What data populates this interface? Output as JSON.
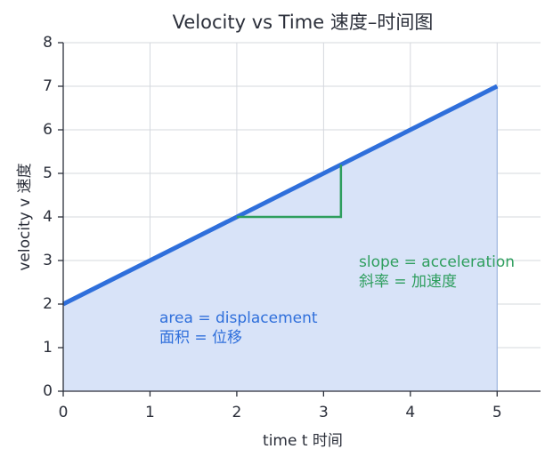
{
  "chart_data": {
    "type": "line",
    "title": "Velocity vs Time  速度–时间图",
    "x_label": "time t  时间",
    "y_label": "velocity v  速度",
    "x": [
      0,
      5
    ],
    "series": [
      {
        "color": "#2f6fdb",
        "area_color": "#d8e3f8",
        "values": [
          2,
          7
        ]
      }
    ],
    "slope_triangle": {
      "color": "#2e9e5e",
      "x": [
        2,
        3.2,
        3.2
      ],
      "y": [
        4,
        4,
        5.2
      ]
    },
    "annotations": [
      {
        "color": "#2f6fdb",
        "lines": [
          "area = displacement",
          "面积 = 位移"
        ]
      },
      {
        "color": "#2e9e5e",
        "lines": [
          "slope = acceleration",
          "斜率 = 加速度"
        ]
      }
    ],
    "xlim": [
      0,
      5.5
    ],
    "xticks": [
      0,
      1,
      2,
      3,
      4,
      5
    ],
    "ylim": [
      0,
      8
    ],
    "yticks": [
      0,
      1,
      2,
      3,
      4,
      5,
      6,
      7,
      8
    ],
    "grid": true
  }
}
